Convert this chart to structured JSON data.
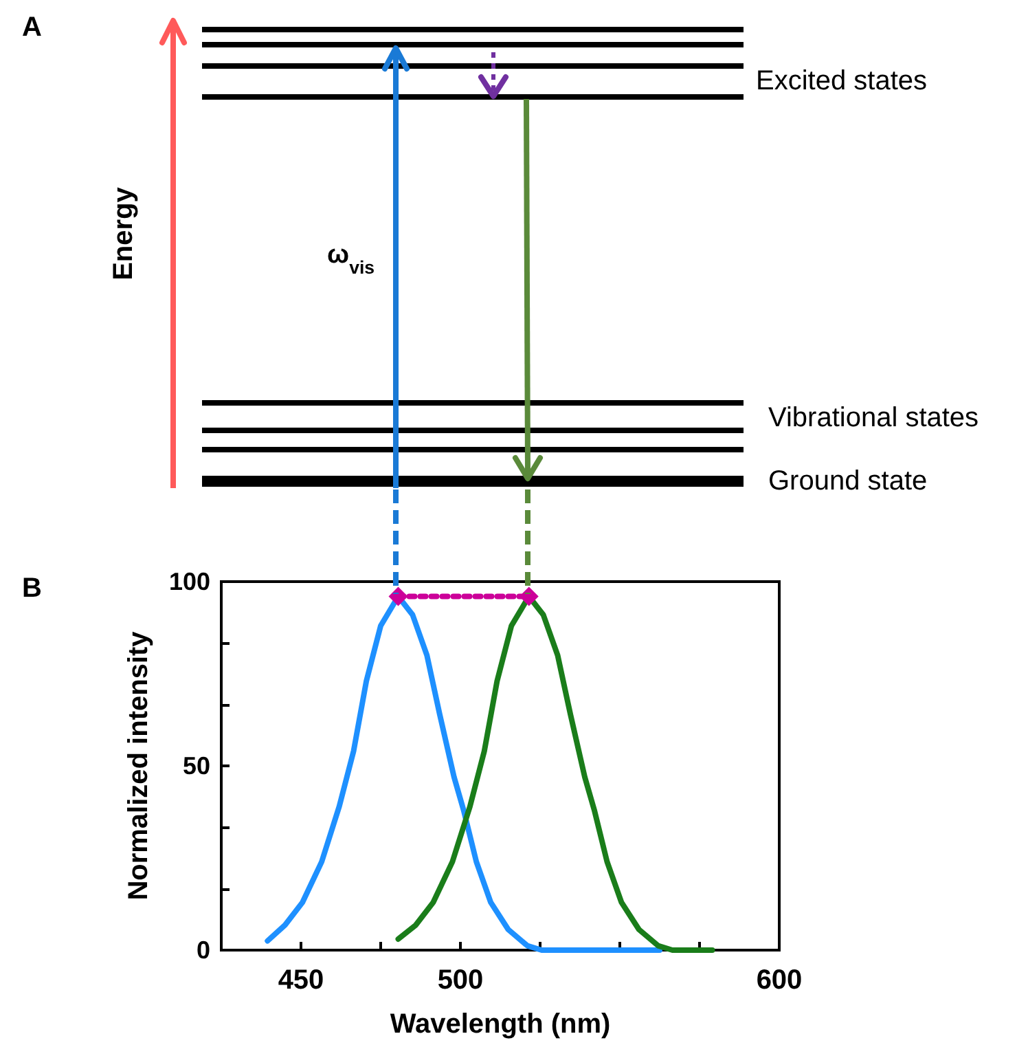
{
  "chart_data": {
    "type": "line",
    "xlabel": "Wavelength (nm)",
    "ylabel": "Normalized intensity",
    "xlim": [
      425,
      600
    ],
    "xticks": [
      {
        "value": 425,
        "label": null
      },
      450,
      {
        "value": 475,
        "label": null
      },
      500,
      {
        "value": 525,
        "label": null
      },
      {
        "value": 550,
        "label": null
      },
      {
        "value": 575,
        "label": null
      },
      600
    ],
    "ylim": [
      0,
      100
    ],
    "yticks": [
      0,
      {
        "value": 16.67,
        "label": null
      },
      {
        "value": 33.33,
        "label": null
      },
      50,
      {
        "value": 66.67,
        "label": null
      },
      {
        "value": 83.33,
        "label": null
      },
      100
    ],
    "marker": "none",
    "line_style": "solid",
    "grid": false,
    "series": [
      {
        "color": "#1e90ff",
        "x": [
          439.5,
          445,
          450.5,
          456.5,
          462,
          466.5,
          470.5,
          475,
          480.5,
          485,
          489.5,
          493.5,
          498,
          501,
          505,
          509.5,
          515,
          521,
          525.5,
          562.5
        ],
        "values": [
          2.5,
          6.8,
          13,
          24,
          39,
          54,
          73,
          88,
          96,
          91,
          80,
          64,
          47,
          38,
          24,
          13,
          5.6,
          1.2,
          0,
          0
        ]
      },
      {
        "color": "#1a7d1a",
        "x": [
          480.5,
          486,
          491.5,
          497.5,
          503,
          507.5,
          511.5,
          516,
          521.5,
          526,
          530.5,
          534.5,
          539,
          542,
          546,
          550.5,
          556,
          562,
          566.5,
          579
        ],
        "values": [
          3,
          6.8,
          13,
          24,
          39,
          54,
          73,
          88,
          96,
          91,
          80,
          64,
          47,
          38,
          24,
          13,
          5.6,
          1.2,
          0,
          0
        ]
      },
      {
        "color": "#cc0099",
        "marker": "diamond",
        "line_style": "dotted",
        "x": [
          480.5,
          521.5
        ],
        "values": [
          96,
          96
        ]
      }
    ],
    "annotations": [
      "A",
      "B",
      "Energy",
      "Excited states",
      "Vibrational states",
      "Ground state",
      "ω$_{vis}$"
    ]
  }
}
